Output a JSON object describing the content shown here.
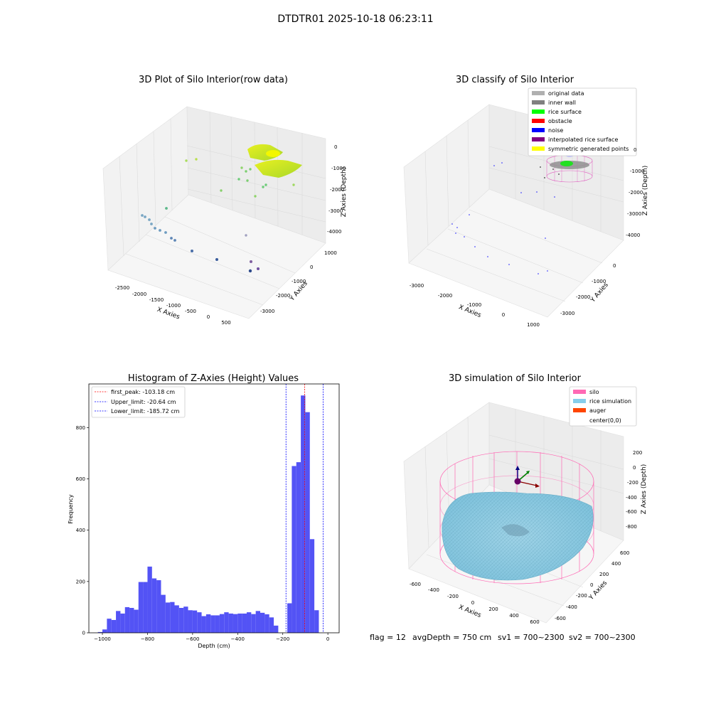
{
  "suptitle": "DTDTR01 2025-10-18 06:23:11",
  "footer": {
    "flag": "flag = 12",
    "avg_depth": "avgDepth = 750 cm",
    "sv1": "sv1 = 700~2300",
    "sv2": "sv2 = 700~2300"
  },
  "chart_data": [
    {
      "type": "scatter",
      "title": "3D Plot of Silo Interior(row data)",
      "xlabel": "X Axies",
      "ylabel": "Y Axies",
      "zlabel": "Z Axies (Depth)",
      "x_ticks": [
        "-2500",
        "-2000",
        "-1500",
        "-1000",
        "-500",
        "0",
        "500"
      ],
      "y_ticks": [
        "1000",
        "0",
        "-1000",
        "-2000",
        "-3000"
      ],
      "z_ticks": [
        "0",
        "-1000",
        "-2000",
        "-3000",
        "-4000"
      ]
    },
    {
      "type": "scatter",
      "title": "3D classify of Silo Interior",
      "xlabel": "X Axies",
      "ylabel": "Y Axies",
      "zlabel": "Z Axies (Depth)",
      "x_ticks": [
        "-3000",
        "-2000",
        "-1000",
        "0",
        "1000"
      ],
      "y_ticks": [
        "0",
        "-1000",
        "-2000",
        "-3000"
      ],
      "z_ticks": [
        "0",
        "-1000",
        "-2000",
        "-3000",
        "-4000"
      ],
      "legend_position": "top-right",
      "legend": [
        {
          "label": "original data",
          "color": "#b0b0b0"
        },
        {
          "label": "inner wall",
          "color": "#808080"
        },
        {
          "label": "rice surface",
          "color": "#00ff00"
        },
        {
          "label": "obstacle",
          "color": "#ff0000"
        },
        {
          "label": "noise",
          "color": "#0000ff"
        },
        {
          "label": "interpolated rice surface",
          "color": "#800080"
        },
        {
          "label": "symmetric generated points",
          "color": "#ffff00"
        }
      ]
    },
    {
      "type": "bar",
      "title": "Histogram of Z-Axies (Height) Values",
      "xlabel": "Depth (cm)",
      "ylabel": "Frequency",
      "xlim": [
        -1060,
        50
      ],
      "ylim": [
        0,
        970
      ],
      "x_ticks": [
        -1000,
        -800,
        -600,
        -400,
        -200,
        0
      ],
      "y_ticks": [
        0,
        200,
        400,
        600,
        800
      ],
      "bar_color": "#5050f5",
      "bin_start": -1020,
      "bin_width": 20,
      "values": [
        3,
        13,
        55,
        50,
        85,
        75,
        100,
        97,
        90,
        198,
        198,
        258,
        212,
        205,
        148,
        118,
        120,
        107,
        97,
        102,
        88,
        87,
        80,
        65,
        72,
        68,
        68,
        73,
        80,
        75,
        73,
        75,
        75,
        80,
        73,
        85,
        78,
        72,
        60,
        28,
        0,
        0,
        115,
        650,
        665,
        925,
        860,
        365,
        88
      ],
      "vlines": [
        {
          "x": -103.18,
          "color": "#ff0000",
          "label": "first_peak: -103.18 cm"
        },
        {
          "x": -20.64,
          "color": "#0000ff",
          "label": "Upper_limit: -20.64 cm"
        },
        {
          "x": -185.72,
          "color": "#0000ff",
          "label": "Lower_limit: -185.72 cm"
        }
      ],
      "legend_position": "top-left"
    },
    {
      "type": "scatter",
      "title": "3D simulation of Silo Interior",
      "xlabel": "X Axies",
      "ylabel": "Y Axies",
      "zlabel": "Z Axies (Depth)",
      "x_ticks": [
        "-600",
        "-400",
        "-200",
        "0",
        "200",
        "400",
        "600"
      ],
      "y_ticks": [
        "600",
        "400",
        "200",
        "0",
        "-200",
        "-400",
        "-600"
      ],
      "z_ticks": [
        "200",
        "0",
        "-200",
        "-400",
        "-600",
        "-800"
      ],
      "legend_position": "top-right",
      "legend": [
        {
          "label": "silo",
          "color": "#ff69b4"
        },
        {
          "label": "rice simulation",
          "color": "#87ceeb"
        },
        {
          "label": "auger",
          "color": "#ff4500"
        },
        {
          "label": "center(0,0)",
          "color": ""
        }
      ]
    }
  ]
}
